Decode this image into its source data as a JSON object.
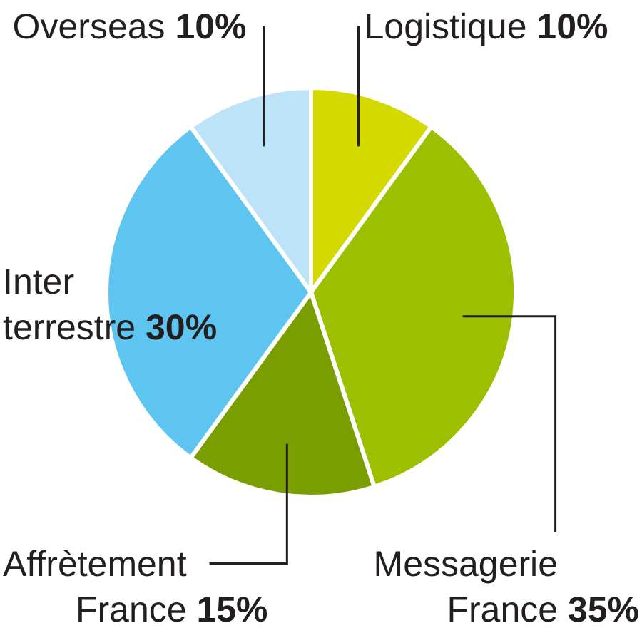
{
  "chart_data": {
    "type": "pie",
    "categories": [
      "Logistique",
      "Messagerie France",
      "Affrètement France",
      "Inter terrestre",
      "Overseas"
    ],
    "values": [
      10,
      35,
      15,
      30,
      10
    ],
    "colors": [
      "#d4d900",
      "#9cc000",
      "#7a9d00",
      "#5ec4f0",
      "#bde3f8"
    ],
    "value_labels": [
      "10%",
      "35%",
      "15%",
      "30%",
      "10%"
    ],
    "legend": false
  }
}
